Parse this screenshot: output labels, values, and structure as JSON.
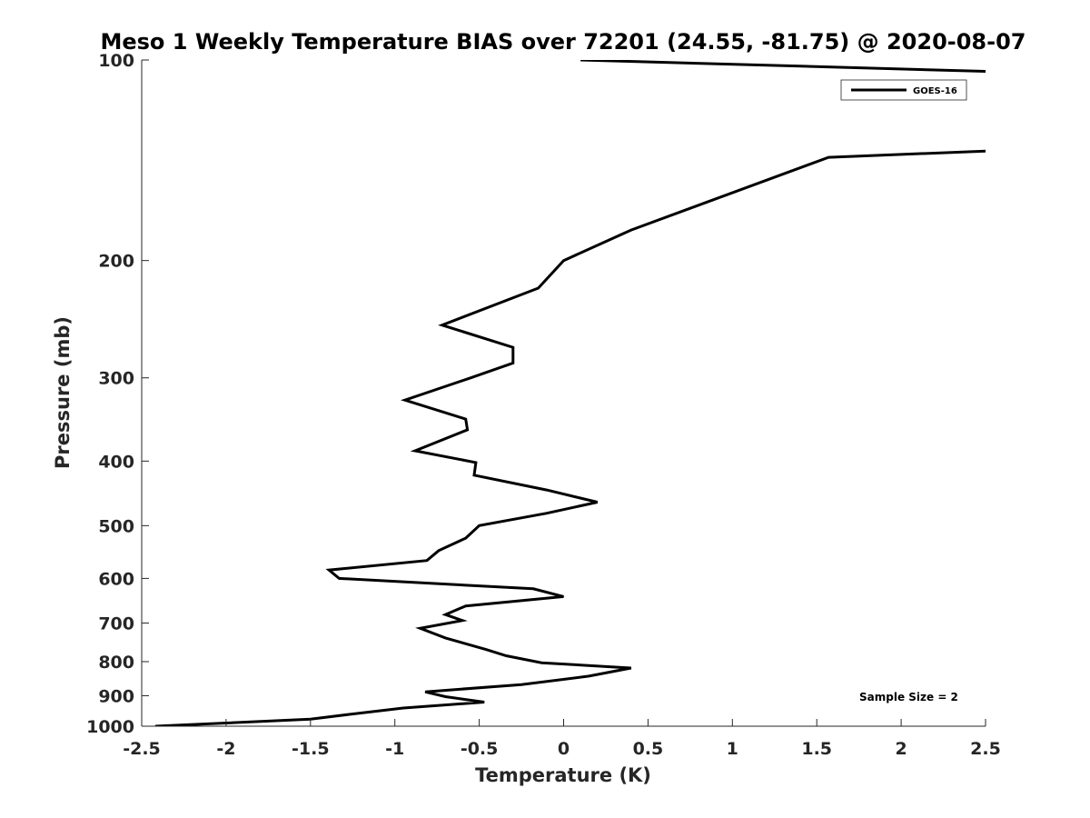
{
  "chart_data": {
    "type": "line",
    "title": "Meso 1 Weekly Temperature BIAS over 72201 (24.55, -81.75) @ 2020-08-07",
    "xlabel": "Temperature (K)",
    "ylabel": "Pressure (mb)",
    "xlim": [
      -2.5,
      2.5
    ],
    "ylim": [
      100,
      1000
    ],
    "y_scale": "log",
    "y_reversed": true,
    "xticks": [
      -2.5,
      -2,
      -1.5,
      -1,
      -0.5,
      0,
      0.5,
      1,
      1.5,
      2,
      2.5
    ],
    "xtick_labels": [
      "-2.5",
      "-2",
      "-1.5",
      "-1",
      "-0.5",
      "0",
      "0.5",
      "1",
      "1.5",
      "2",
      "2.5"
    ],
    "yticks": [
      100,
      200,
      300,
      400,
      500,
      600,
      700,
      800,
      900,
      1000
    ],
    "ytick_labels": [
      "100",
      "200",
      "300",
      "400",
      "500",
      "600",
      "700",
      "800",
      "900",
      "1000"
    ],
    "grid": false,
    "legend": {
      "position": "top-right",
      "entries": [
        "GOES-16"
      ]
    },
    "annotation": "Sample Size = 2",
    "series": [
      {
        "name": "GOES-16",
        "color": "#000000",
        "segments": [
          [
            {
              "x": 0.1,
              "p": 100
            },
            {
              "x": 2.5,
              "p": 104
            }
          ],
          [
            {
              "x": 2.5,
              "p": 137
            },
            {
              "x": 1.57,
              "p": 140
            },
            {
              "x": 0.4,
              "p": 180
            },
            {
              "x": 0.0,
              "p": 200
            },
            {
              "x": -0.15,
              "p": 220
            },
            {
              "x": -0.72,
              "p": 250
            },
            {
              "x": -0.3,
              "p": 270
            },
            {
              "x": -0.3,
              "p": 285
            },
            {
              "x": -0.55,
              "p": 300
            },
            {
              "x": -0.94,
              "p": 324
            },
            {
              "x": -0.58,
              "p": 346
            },
            {
              "x": -0.57,
              "p": 359
            },
            {
              "x": -0.88,
              "p": 386
            },
            {
              "x": -0.52,
              "p": 402
            },
            {
              "x": -0.53,
              "p": 420
            },
            {
              "x": -0.1,
              "p": 442
            },
            {
              "x": 0.2,
              "p": 461
            },
            {
              "x": -0.1,
              "p": 479
            },
            {
              "x": -0.5,
              "p": 500
            },
            {
              "x": -0.58,
              "p": 522
            },
            {
              "x": -0.74,
              "p": 545
            },
            {
              "x": -0.81,
              "p": 564
            },
            {
              "x": -1.39,
              "p": 583
            },
            {
              "x": -1.33,
              "p": 600
            },
            {
              "x": -0.18,
              "p": 622
            },
            {
              "x": 0.0,
              "p": 639
            },
            {
              "x": -0.58,
              "p": 660
            },
            {
              "x": -0.7,
              "p": 680
            },
            {
              "x": -0.6,
              "p": 694
            },
            {
              "x": -0.85,
              "p": 713
            },
            {
              "x": -0.7,
              "p": 737
            },
            {
              "x": -0.46,
              "p": 767
            },
            {
              "x": -0.34,
              "p": 784
            },
            {
              "x": -0.13,
              "p": 803
            },
            {
              "x": 0.4,
              "p": 818
            },
            {
              "x": 0.15,
              "p": 841
            },
            {
              "x": -0.25,
              "p": 866
            },
            {
              "x": -0.82,
              "p": 888
            },
            {
              "x": -0.7,
              "p": 903
            },
            {
              "x": -0.47,
              "p": 920
            },
            {
              "x": -0.95,
              "p": 939
            },
            {
              "x": -1.27,
              "p": 960
            },
            {
              "x": -1.5,
              "p": 976
            },
            {
              "x": -2.0,
              "p": 989
            },
            {
              "x": -2.42,
              "p": 1000
            }
          ]
        ]
      }
    ]
  }
}
